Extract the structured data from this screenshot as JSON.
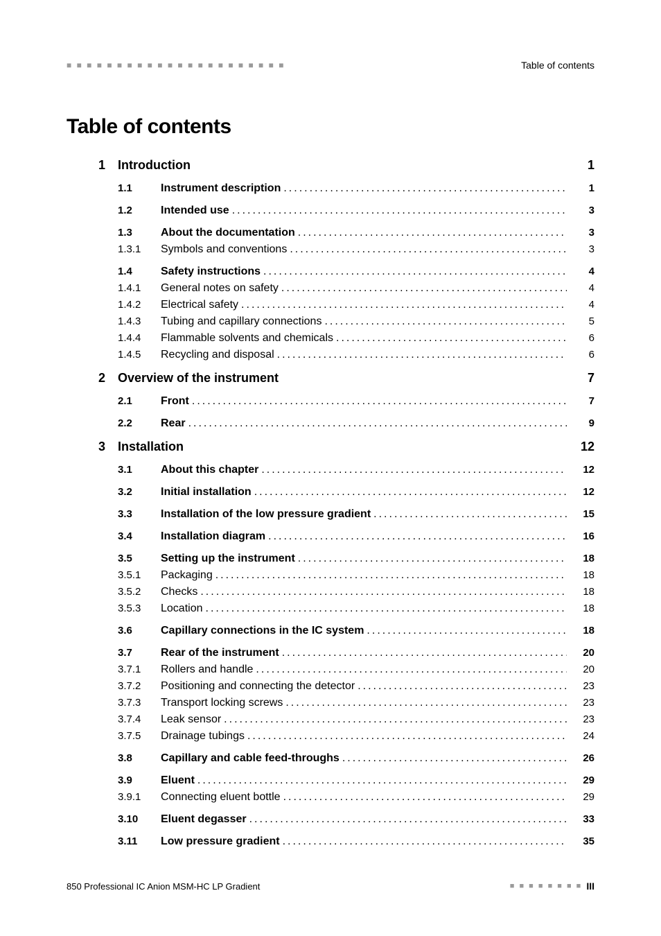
{
  "header": {
    "left_decor": "■ ■ ■ ■ ■ ■ ■ ■ ■ ■ ■ ■ ■ ■ ■ ■ ■ ■ ■ ■ ■ ■",
    "right": "Table of contents"
  },
  "title": "Table of contents",
  "chapters": [
    {
      "num": "1",
      "title": "Introduction",
      "page": "1",
      "groups": [
        [
          {
            "num": "1.1",
            "title": "Instrument description",
            "page": "1",
            "bold": true
          }
        ],
        [
          {
            "num": "1.2",
            "title": "Intended use",
            "page": "3",
            "bold": true
          }
        ],
        [
          {
            "num": "1.3",
            "title": "About the documentation",
            "page": "3",
            "bold": true
          },
          {
            "num": "1.3.1",
            "title": "Symbols and conventions",
            "page": "3",
            "bold": false
          }
        ],
        [
          {
            "num": "1.4",
            "title": "Safety instructions",
            "page": "4",
            "bold": true
          },
          {
            "num": "1.4.1",
            "title": "General notes on safety",
            "page": "4",
            "bold": false
          },
          {
            "num": "1.4.2",
            "title": "Electrical safety",
            "page": "4",
            "bold": false
          },
          {
            "num": "1.4.3",
            "title": "Tubing and capillary connections",
            "page": "5",
            "bold": false
          },
          {
            "num": "1.4.4",
            "title": "Flammable solvents and chemicals",
            "page": "6",
            "bold": false
          },
          {
            "num": "1.4.5",
            "title": "Recycling and disposal",
            "page": "6",
            "bold": false
          }
        ]
      ]
    },
    {
      "num": "2",
      "title": "Overview of the instrument",
      "page": "7",
      "groups": [
        [
          {
            "num": "2.1",
            "title": "Front",
            "page": "7",
            "bold": true
          }
        ],
        [
          {
            "num": "2.2",
            "title": "Rear",
            "page": "9",
            "bold": true
          }
        ]
      ]
    },
    {
      "num": "3",
      "title": "Installation",
      "page": "12",
      "groups": [
        [
          {
            "num": "3.1",
            "title": "About this chapter",
            "page": "12",
            "bold": true
          }
        ],
        [
          {
            "num": "3.2",
            "title": "Initial installation",
            "page": "12",
            "bold": true
          }
        ],
        [
          {
            "num": "3.3",
            "title": "Installation of the low pressure gradient",
            "page": "15",
            "bold": true
          }
        ],
        [
          {
            "num": "3.4",
            "title": "Installation diagram",
            "page": "16",
            "bold": true
          }
        ],
        [
          {
            "num": "3.5",
            "title": "Setting up the instrument",
            "page": "18",
            "bold": true
          },
          {
            "num": "3.5.1",
            "title": "Packaging",
            "page": "18",
            "bold": false
          },
          {
            "num": "3.5.2",
            "title": "Checks",
            "page": "18",
            "bold": false
          },
          {
            "num": "3.5.3",
            "title": "Location",
            "page": "18",
            "bold": false
          }
        ],
        [
          {
            "num": "3.6",
            "title": "Capillary connections in the IC system",
            "page": "18",
            "bold": true
          }
        ],
        [
          {
            "num": "3.7",
            "title": "Rear of the instrument",
            "page": "20",
            "bold": true
          },
          {
            "num": "3.7.1",
            "title": "Rollers and handle",
            "page": "20",
            "bold": false
          },
          {
            "num": "3.7.2",
            "title": "Positioning and connecting the detector",
            "page": "23",
            "bold": false
          },
          {
            "num": "3.7.3",
            "title": "Transport locking screws",
            "page": "23",
            "bold": false
          },
          {
            "num": "3.7.4",
            "title": "Leak sensor",
            "page": "23",
            "bold": false
          },
          {
            "num": "3.7.5",
            "title": "Drainage tubings",
            "page": "24",
            "bold": false
          }
        ],
        [
          {
            "num": "3.8",
            "title": "Capillary and cable feed-throughs",
            "page": "26",
            "bold": true
          }
        ],
        [
          {
            "num": "3.9",
            "title": "Eluent",
            "page": "29",
            "bold": true
          },
          {
            "num": "3.9.1",
            "title": "Connecting eluent bottle",
            "page": "29",
            "bold": false
          }
        ],
        [
          {
            "num": "3.10",
            "title": "Eluent degasser",
            "page": "33",
            "bold": true
          }
        ],
        [
          {
            "num": "3.11",
            "title": "Low pressure gradient",
            "page": "35",
            "bold": true
          }
        ]
      ]
    }
  ],
  "footer": {
    "left": "850 Professional IC Anion MSM-HC LP Gradient",
    "dashes": "■ ■ ■ ■ ■ ■ ■ ■",
    "page": "III"
  },
  "colors": {
    "text": "#000000",
    "decor": "#9a9a9a",
    "background": "#ffffff"
  },
  "typography": {
    "title_fontsize": 30,
    "chapter_fontsize": 18,
    "entry_fontsize": 16,
    "sub_fontsize": 15,
    "header_fontsize": 14,
    "footer_fontsize": 13
  }
}
